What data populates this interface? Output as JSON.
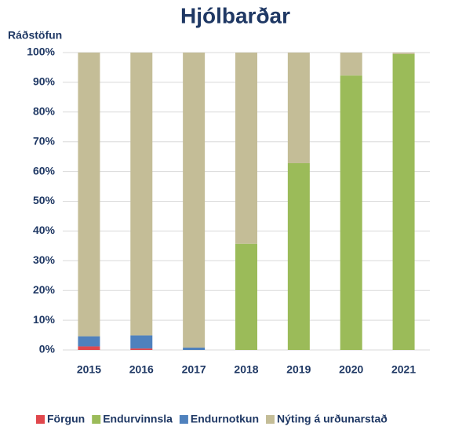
{
  "chart_data": {
    "type": "stacked_bar",
    "title": "Hjólbarðar",
    "ylabel": "Ráðstöfun",
    "categories": [
      "2015",
      "2016",
      "2017",
      "2018",
      "2019",
      "2020",
      "2021"
    ],
    "series": [
      {
        "name": "Förgun",
        "color": "#e0474c",
        "values": [
          1.2,
          0.5,
          0,
          0,
          0,
          0,
          0
        ]
      },
      {
        "name": "Endurvinnsla",
        "color": "#9bbb59",
        "values": [
          0,
          0,
          0,
          35.7,
          62.8,
          92.3,
          99.5
        ]
      },
      {
        "name": "Endurnotkun",
        "color": "#4f81bd",
        "values": [
          3.4,
          4.4,
          0.8,
          0,
          0,
          0,
          0
        ]
      },
      {
        "name": "Nýting á urðunarstað",
        "color": "#c4bd97",
        "values": [
          95.4,
          95.1,
          99.2,
          64.3,
          37.2,
          7.7,
          0.5
        ]
      }
    ],
    "ylim": [
      0,
      100
    ],
    "yticks": [
      {
        "value": 0,
        "label": "0%"
      },
      {
        "value": 10,
        "label": "10%"
      },
      {
        "value": 20,
        "label": "20%"
      },
      {
        "value": 30,
        "label": "30%"
      },
      {
        "value": 40,
        "label": "40%"
      },
      {
        "value": 50,
        "label": "50%"
      },
      {
        "value": 60,
        "label": "60%"
      },
      {
        "value": 70,
        "label": "70%"
      },
      {
        "value": 80,
        "label": "80%"
      },
      {
        "value": 90,
        "label": "90%"
      },
      {
        "value": 100,
        "label": "100%"
      }
    ],
    "grid": true,
    "legend": "bottom"
  }
}
